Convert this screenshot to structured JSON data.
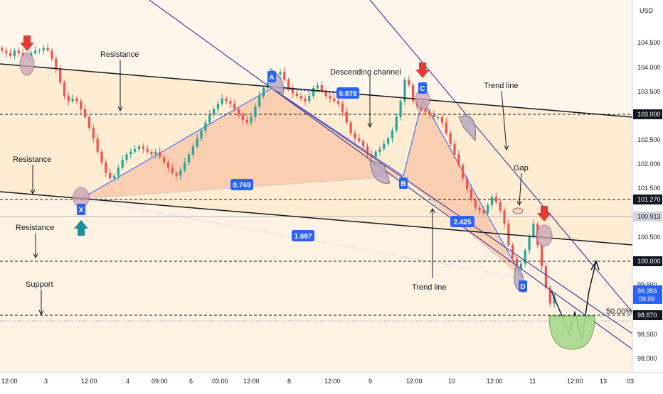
{
  "chart_data": {
    "type": "candlestick",
    "currency": "USD",
    "y_ticks": [
      "104.500",
      "104.000",
      "103.500",
      "103.000",
      "102.500",
      "102.000",
      "101.500",
      "101.270",
      "100.913",
      "100.500",
      "100.000",
      "99.500",
      "98.870",
      "98.500",
      "98.000"
    ],
    "price_tags": [
      {
        "value": "103.000",
        "style": "dark"
      },
      {
        "value": "101.270",
        "style": "dark"
      },
      {
        "value": "100.913",
        "style": "gray"
      },
      {
        "value": "100.000",
        "style": "dark"
      },
      {
        "value": "99.356",
        "sub": "09:09",
        "style": "blue"
      },
      {
        "value": "98.870",
        "style": "dark"
      }
    ],
    "x_ticks": [
      "12:00",
      "3",
      "12:00",
      "4",
      "09:00",
      "6",
      "03:00",
      "12:00",
      "8",
      "12:00",
      "9",
      "12:00",
      "10",
      "12:00",
      "11",
      "12:00",
      "13",
      "03:"
    ],
    "ylim": [
      97.9,
      104.9
    ],
    "pattern_points": [
      {
        "label": "X",
        "price": 101.43
      },
      {
        "label": "A",
        "price": 103.55
      },
      {
        "label": "B",
        "price": 101.95
      },
      {
        "label": "C",
        "price": 103.5
      },
      {
        "label": "D",
        "price": 99.55
      }
    ],
    "ratios": [
      "0.878",
      "0.749",
      "1.687",
      "2.425"
    ],
    "annotations": [
      "Resistance",
      "Resistance",
      "Resistance",
      "Support",
      "Descending channel",
      "Trend line",
      "Trend line",
      "Gap",
      "50.00%"
    ],
    "horizontal_levels": [
      103.0,
      101.27,
      100.0,
      98.87,
      98.8
    ],
    "closes": [
      103.95,
      103.9,
      103.85,
      103.95,
      103.9,
      103.85,
      103.85,
      103.9,
      103.95,
      103.95,
      104.0,
      103.95,
      103.8,
      103.6,
      103.35,
      103.1,
      103.0,
      103.05,
      103.0,
      102.85,
      102.7,
      102.5,
      102.3,
      102.05,
      101.85,
      101.65,
      101.55,
      101.6,
      101.75,
      101.9,
      102.0,
      102.05,
      102.1,
      102.15,
      102.1,
      102.05,
      102.0,
      102.05,
      101.95,
      101.85,
      101.75,
      101.65,
      101.6,
      101.7,
      101.85,
      102.0,
      102.15,
      102.3,
      102.45,
      102.6,
      102.75,
      102.85,
      102.95,
      103.05,
      103.0,
      102.95,
      102.85,
      102.75,
      102.65,
      102.6,
      102.7,
      102.9,
      103.1,
      103.25,
      103.35,
      103.45,
      103.5,
      103.55,
      103.4,
      103.25,
      103.15,
      103.1,
      103.05,
      103.0,
      103.1,
      103.25,
      103.3,
      103.2,
      103.1,
      103.05,
      103.0,
      102.95,
      102.8,
      102.6,
      102.4,
      102.3,
      102.25,
      102.15,
      102.0,
      101.95,
      102.05,
      102.1,
      102.2,
      102.3,
      102.45,
      102.7,
      103.0,
      103.4,
      103.3,
      103.0,
      102.9,
      102.85,
      102.8,
      102.75,
      102.7,
      102.7,
      102.6,
      102.4,
      102.2,
      102.0,
      101.8,
      101.55,
      101.35,
      101.15,
      101.0,
      100.95,
      100.9,
      101.05,
      101.2,
      101.1,
      100.95,
      100.7,
      100.3,
      100.05,
      99.85,
      99.95,
      100.2,
      100.45,
      100.7,
      100.3,
      99.9,
      99.5,
      99.2,
      99.356
    ]
  }
}
